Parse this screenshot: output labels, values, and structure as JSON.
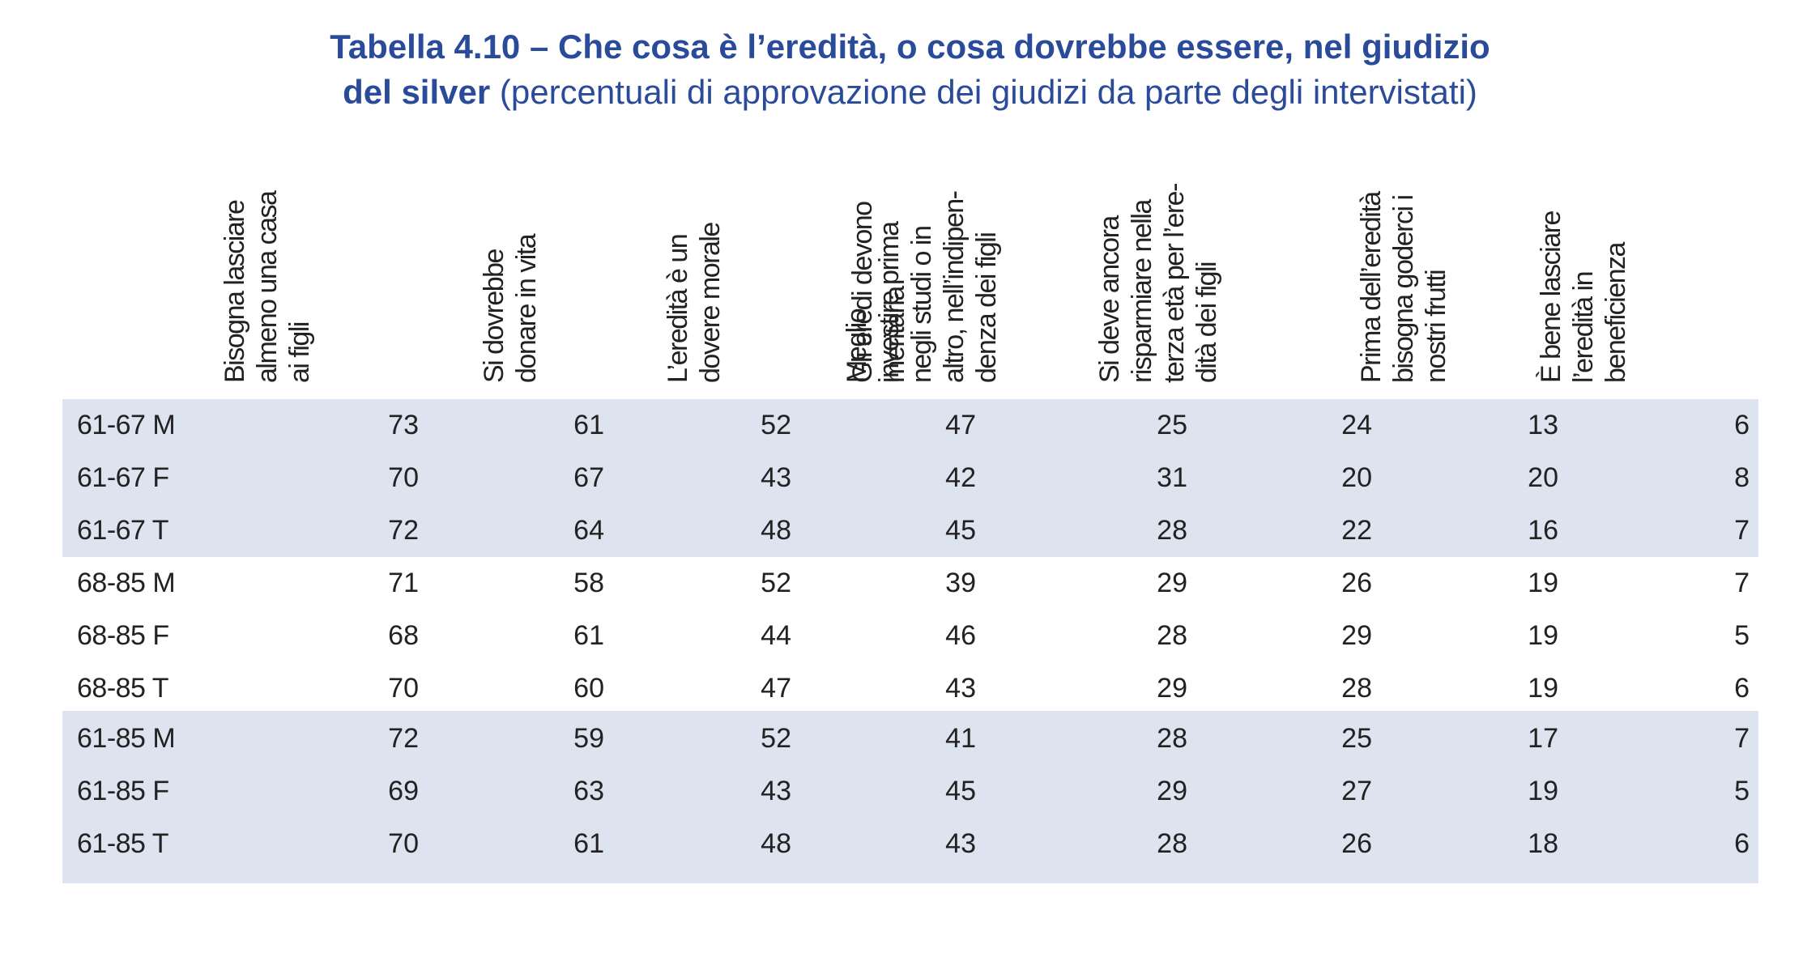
{
  "title": {
    "line1": "Tabella 4.10 – Che cosa è l’eredità, o cosa dovrebbe essere, nel giudizio",
    "line2_bold": "del silver",
    "line2_normal": " (percentuali di approvazione dei giudizi da parte degli intervistati)"
  },
  "columns": [
    "Bisogna lasciare\nalmeno una casa\nai figli",
    "Si dovrebbe\ndonare in vita",
    "L’eredità è un\ndovere morale",
    "Gli eredi devono\nmeritarla",
    "Meglio\ninvestire prima\nnegli studi o in\naltro, nell’indipen-\ndenza dei figli",
    "Si deve ancora\nrisparmiare nella\nterza età per l’ere-\ndità dei figli",
    "Prima dell’eredità\nbisogna goderci i\nnostri frutti",
    "È bene lasciare\nl’eredità in\nbeneficienza"
  ],
  "rows": [
    {
      "label": "61-67 M",
      "values": [
        "73",
        "61",
        "52",
        "47",
        "25",
        "24",
        "13",
        "6"
      ]
    },
    {
      "label": "61-67 F",
      "values": [
        "70",
        "67",
        "43",
        "42",
        "31",
        "20",
        "20",
        "8"
      ]
    },
    {
      "label": "61-67 T",
      "values": [
        "72",
        "64",
        "48",
        "45",
        "28",
        "22",
        "16",
        "7"
      ]
    },
    {
      "label": "68-85 M",
      "values": [
        "71",
        "58",
        "52",
        "39",
        "29",
        "26",
        "19",
        "7"
      ]
    },
    {
      "label": "68-85 F",
      "values": [
        "68",
        "61",
        "44",
        "46",
        "28",
        "29",
        "19",
        "5"
      ]
    },
    {
      "label": "68-85 T",
      "values": [
        "70",
        "60",
        "47",
        "43",
        "29",
        "28",
        "19",
        "6"
      ]
    },
    {
      "label": "61-85 M",
      "values": [
        "72",
        "59",
        "52",
        "41",
        "28",
        "25",
        "17",
        "7"
      ]
    },
    {
      "label": "61-85 F",
      "values": [
        "69",
        "63",
        "43",
        "45",
        "29",
        "27",
        "19",
        "5"
      ]
    },
    {
      "label": "61-85 T",
      "values": [
        "70",
        "61",
        "48",
        "43",
        "28",
        "26",
        "18",
        "6"
      ]
    }
  ],
  "colors": {
    "title": "#2a4a9a",
    "band": "#dde3ef",
    "text": "#222222"
  }
}
